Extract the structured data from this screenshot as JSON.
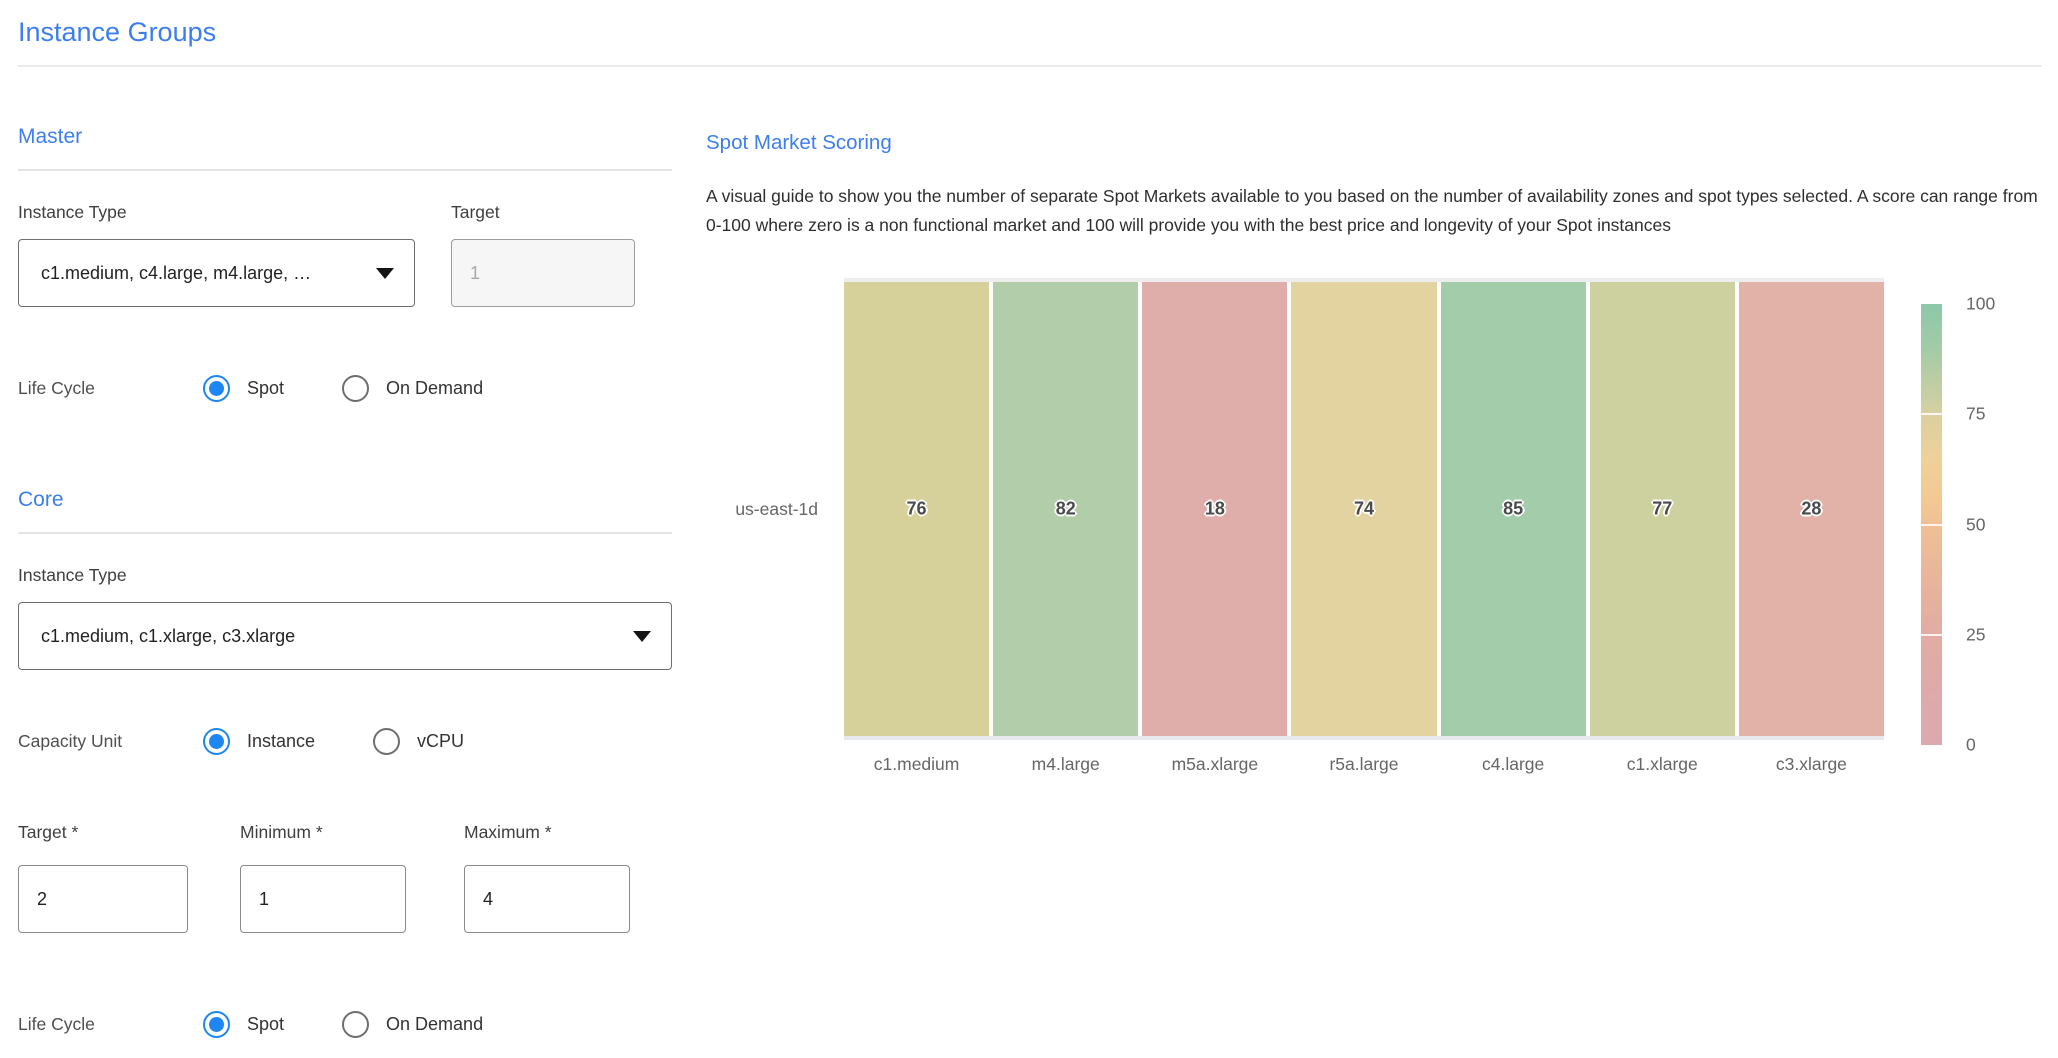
{
  "title": "Instance Groups",
  "master": {
    "heading": "Master",
    "instance_type_label": "Instance Type",
    "instance_type_value": "c1.medium, c4.large, m4.large, …",
    "target_label": "Target",
    "target_value": "1",
    "life_cycle_label": "Life Cycle",
    "spot_option": "Spot",
    "on_demand_option": "On Demand",
    "life_cycle_selected": "Spot"
  },
  "core": {
    "heading": "Core",
    "instance_type_label": "Instance Type",
    "instance_type_value": "c1.medium, c1.xlarge, c3.xlarge",
    "capacity_unit_label": "Capacity Unit",
    "instance_option": "Instance",
    "vcpu_option": "vCPU",
    "capacity_unit_selected": "Instance",
    "target_label": "Target *",
    "target_value": "2",
    "minimum_label": "Minimum *",
    "minimum_value": "1",
    "maximum_label": "Maximum *",
    "maximum_value": "4",
    "life_cycle_label": "Life Cycle",
    "spot_option": "Spot",
    "on_demand_option": "On Demand",
    "life_cycle_selected": "Spot"
  },
  "spot_market": {
    "heading": "Spot Market Scoring",
    "description": "A visual guide to show you the number of separate Spot Markets available to you based on the number of availability zones and spot types selected. A score can range from 0-100 where zero is a non functional market and 100 will provide you with the best price and longevity of your Spot instances"
  },
  "chart_data": {
    "type": "heatmap",
    "title": "Spot Market Scoring",
    "rows": [
      "us-east-1d"
    ],
    "categories": [
      "c1.medium",
      "m4.large",
      "m5a.xlarge",
      "r5a.large",
      "c4.large",
      "c1.xlarge",
      "c3.xlarge"
    ],
    "values": [
      [
        76,
        82,
        18,
        74,
        85,
        77,
        28
      ]
    ],
    "value_range": [
      0,
      100
    ],
    "cell_colors": [
      [
        "#d6d09b",
        "#b2cda9",
        "#dfadaa",
        "#e2d3a0",
        "#a3cdaa",
        "#cdd19f",
        "#e2b2a8"
      ]
    ],
    "colorbar": {
      "ticks": [
        100,
        75,
        50,
        25,
        0
      ],
      "gradient": [
        {
          "pos": 0,
          "color": "#8cc8aa"
        },
        {
          "pos": 10,
          "color": "#a2cba6"
        },
        {
          "pos": 22,
          "color": "#cccfa2"
        },
        {
          "pos": 25,
          "color": "#dad0a0"
        },
        {
          "pos": 35,
          "color": "#eed19a"
        },
        {
          "pos": 45,
          "color": "#f3c893"
        },
        {
          "pos": 50,
          "color": "#efc096"
        },
        {
          "pos": 63,
          "color": "#e8b49b"
        },
        {
          "pos": 75,
          "color": "#e1aca4"
        },
        {
          "pos": 100,
          "color": "#dba9ae"
        }
      ]
    },
    "legend_position": "right",
    "grid": false
  },
  "colors": {
    "accent_blue": "#3c7ef0"
  }
}
